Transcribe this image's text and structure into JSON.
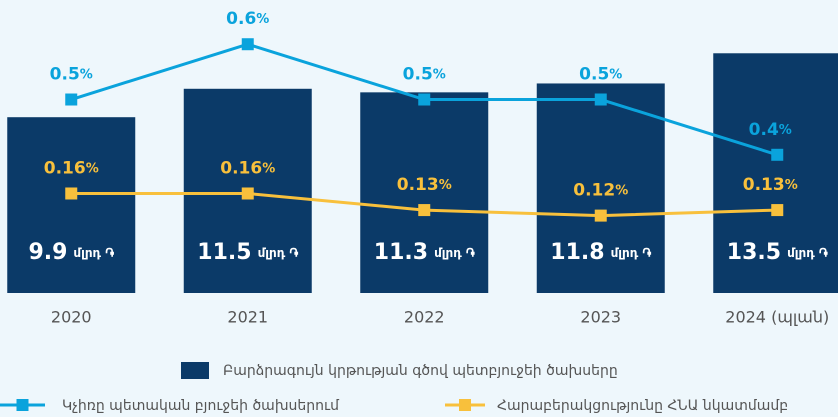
{
  "chart_data": {
    "type": "bar-line",
    "categories": [
      "2020",
      "2021",
      "2022",
      "2023",
      "2024 (պլան)"
    ],
    "bar": {
      "name": "Բարձրագույն կրթության գծով պետբյուջեի ծախսերը",
      "color": "#0b3a68",
      "values": [
        9.9,
        11.5,
        11.3,
        11.8,
        13.5
      ],
      "unit": "մլրդ ֏",
      "ylim": [
        0,
        16.5
      ]
    },
    "series": [
      {
        "name": "Կչիռը պետական բյուջեի ծախսերում",
        "color": "#0aa3dc",
        "values": [
          0.5,
          0.6,
          0.5,
          0.5,
          0.4
        ],
        "unit": "%",
        "ylim": [
          0.15,
          0.68
        ]
      },
      {
        "name": "Հարաբերակցությունը ՀՆԱ նկատմամբ",
        "color": "#f8c03c",
        "values": [
          0.16,
          0.16,
          0.13,
          0.12,
          0.13
        ],
        "unit": "%",
        "ylim": [
          -0.02,
          0.51
        ]
      }
    ]
  }
}
